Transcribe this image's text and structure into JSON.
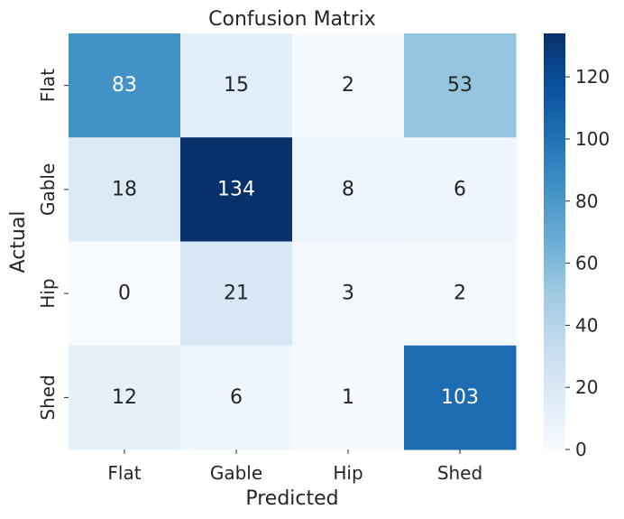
{
  "chart_data": {
    "type": "heatmap",
    "title": "Confusion Matrix",
    "xlabel": "Predicted",
    "ylabel": "Actual",
    "x_categories": [
      "Flat",
      "Gable",
      "Hip",
      "Shed"
    ],
    "y_categories": [
      "Flat",
      "Gable",
      "Hip",
      "Shed"
    ],
    "values": [
      [
        83,
        15,
        2,
        53
      ],
      [
        18,
        134,
        8,
        6
      ],
      [
        0,
        21,
        3,
        2
      ],
      [
        12,
        6,
        1,
        103
      ]
    ],
    "colorbar": {
      "min": 0,
      "max": 134,
      "ticks": [
        0,
        20,
        40,
        60,
        80,
        100,
        120
      ]
    },
    "colormap": "Blues",
    "colors": {
      "low": "#f7fbff",
      "high": "#08306b",
      "dark_text": "#262626",
      "light_text": "#ffffff"
    }
  }
}
